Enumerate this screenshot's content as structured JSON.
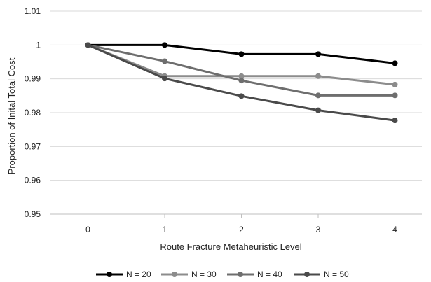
{
  "chart_data": {
    "type": "line",
    "title": "",
    "xlabel": "Route Fracture Metaheuristic Level",
    "ylabel": "Proportion of Inital Total Cost",
    "x": [
      0,
      1,
      2,
      3,
      4
    ],
    "ylim": [
      0.95,
      1.01
    ],
    "yticks": [
      "0.95",
      "0.96",
      "0.97",
      "0.98",
      "0.99",
      "1",
      "1.01"
    ],
    "grid": "horizontal",
    "legend_position": "bottom",
    "series": [
      {
        "name": "N = 20",
        "color": "#000000",
        "values": [
          1.0,
          1.0,
          0.9973,
          0.9973,
          0.9946
        ]
      },
      {
        "name": "N = 30",
        "color": "#8c8c8c",
        "values": [
          1.0,
          0.9908,
          0.9908,
          0.9908,
          0.9883
        ]
      },
      {
        "name": "N = 40",
        "color": "#6e6e6e",
        "values": [
          1.0,
          0.9952,
          0.9895,
          0.9851,
          0.9851
        ]
      },
      {
        "name": "N = 50",
        "color": "#4a4a4a",
        "values": [
          1.0,
          0.9901,
          0.9849,
          0.9807,
          0.9777
        ]
      }
    ]
  }
}
